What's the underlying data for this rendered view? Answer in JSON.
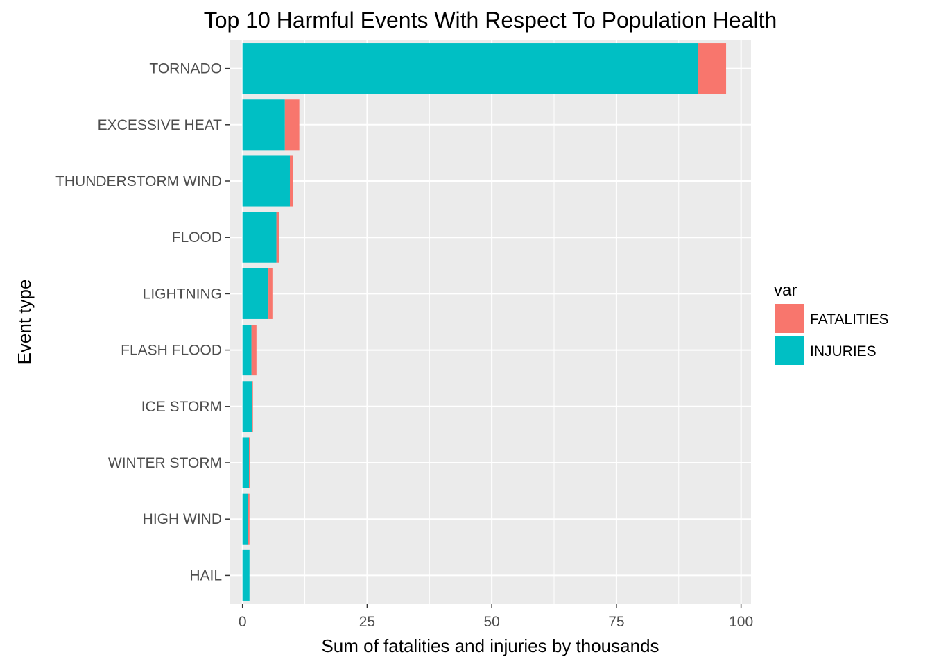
{
  "chart_data": {
    "type": "bar",
    "orientation": "horizontal",
    "stacked": true,
    "title": "Top 10 Harmful Events With Respect To Population Health",
    "xlabel": "Sum of fatalities and injuries by thousands",
    "ylabel": "Event type",
    "xlim": [
      -2.6,
      102
    ],
    "xticks": [
      0,
      25,
      50,
      75,
      100
    ],
    "grid": true,
    "legend": {
      "title": "var",
      "placement": "right"
    },
    "categories": [
      "TORNADO",
      "EXCESSIVE HEAT",
      "THUNDERSTORM WIND",
      "FLOOD",
      "LIGHTNING",
      "FLASH FLOOD",
      "ICE STORM",
      "WINTER STORM",
      "HIGH WIND",
      "HAIL"
    ],
    "series": [
      {
        "name": "INJURIES",
        "color": "#00BFC4",
        "values": [
          91.3,
          8.5,
          9.5,
          6.8,
          5.2,
          1.8,
          2.0,
          1.3,
          1.1,
          1.4
        ]
      },
      {
        "name": "FATALITIES",
        "color": "#F8766D",
        "values": [
          5.7,
          2.9,
          0.6,
          0.5,
          0.8,
          1.0,
          0.1,
          0.2,
          0.3,
          0.0
        ]
      }
    ],
    "legend_order": [
      "FATALITIES",
      "INJURIES"
    ],
    "panel_background": "#EBEBEB",
    "grid_color": "#FFFFFF"
  }
}
